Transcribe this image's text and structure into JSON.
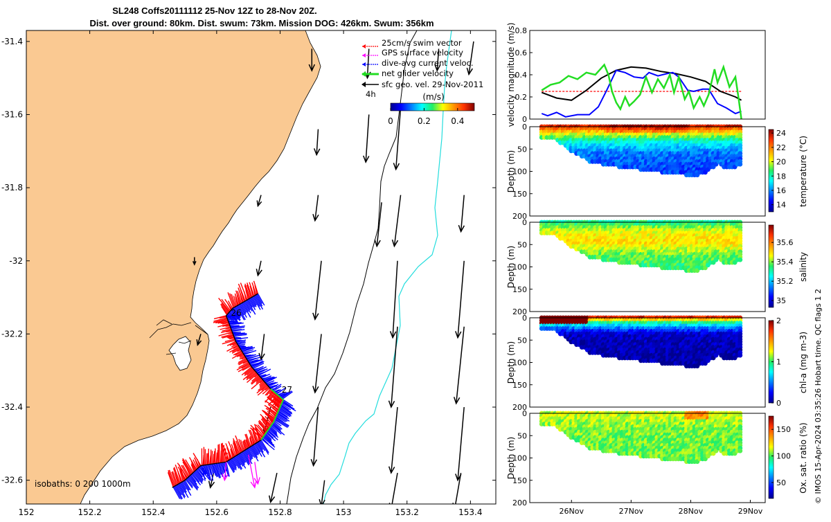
{
  "title": {
    "line1": "SL248 Coffs20111112 25-Nov 12Z to 28-Nov 20Z.",
    "line2": "Dist. over ground: 80km. Dist. swum: 73km. Mission DOG: 426km. Swum: 356km"
  },
  "colors": {
    "land": "#fac992",
    "swim": "#ff0000",
    "gps": "#ff00ff",
    "dive_avg": "#0000ff",
    "net": "#22dd22",
    "sfc": "#000000",
    "isobath_200": "#000000",
    "isobath_1000": "#22dddd"
  },
  "chart_data": [
    {
      "type": "scatter",
      "panel": "map",
      "x_ticks": [
        "152",
        "152.2",
        "152.4",
        "152.6",
        "152.8",
        "153",
        "153.2",
        "153.4"
      ],
      "y_ticks": [
        "-31.4",
        "-31.6",
        "-31.8",
        "-32",
        "-32.2",
        "-32.4",
        "-32.6"
      ],
      "xlim": [
        152.0,
        153.48
      ],
      "ylim": [
        -32.665,
        -31.37
      ],
      "legend": [
        {
          "label": "25cm/s swim vector",
          "color": "#ff0000"
        },
        {
          "label": "GPS surface velocity",
          "color": "#ff00ff"
        },
        {
          "label": "dive-avg current veloc.",
          "color": "#0000ff"
        },
        {
          "label": "net glider velocity",
          "color": "#22dd22"
        },
        {
          "label": "sfc geo. vel. 29-Nov-2011",
          "color": "#000000"
        }
      ],
      "legend_scale_label": "4h",
      "colorbar": {
        "unit": "(m/s)",
        "ticks": [
          "0",
          "0.2",
          "0.4"
        ],
        "range": [
          0,
          0.5
        ]
      },
      "day_labels": [
        {
          "text": "26",
          "lon": 152.645,
          "lat": -32.15
        },
        {
          "text": "27",
          "lon": 152.805,
          "lat": -32.36
        }
      ],
      "isobaths_text": "isobaths: 0   200  1000m",
      "glider_track": [
        [
          152.73,
          -32.09
        ],
        [
          152.65,
          -32.13
        ],
        [
          152.63,
          -32.15
        ],
        [
          152.66,
          -32.22
        ],
        [
          152.71,
          -32.29
        ],
        [
          152.77,
          -32.35
        ],
        [
          152.81,
          -32.38
        ],
        [
          152.78,
          -32.44
        ],
        [
          152.74,
          -32.49
        ],
        [
          152.63,
          -32.55
        ],
        [
          152.55,
          -32.56
        ],
        [
          152.5,
          -32.6
        ],
        [
          152.46,
          -32.62
        ]
      ],
      "gps_vectors": [
        {
          "lon": 152.63,
          "lat": -32.55,
          "dlon": -0.005,
          "dlat": -0.05
        },
        {
          "lon": 152.7,
          "lat": -32.53,
          "dlon": 0.02,
          "dlat": -0.09
        },
        {
          "lon": 152.72,
          "lat": -32.55,
          "dlon": 0.01,
          "dlat": -0.06
        }
      ],
      "sfc_vectors": [
        {
          "lon": 152.9,
          "lat": -31.42,
          "dlon": 0.0,
          "dlat": -0.06
        },
        {
          "lon": 153.08,
          "lat": -31.42,
          "dlon": -0.005,
          "dlat": -0.08
        },
        {
          "lon": 153.3,
          "lat": -31.42,
          "dlon": -0.005,
          "dlat": -0.06
        },
        {
          "lon": 153.41,
          "lat": -31.4,
          "dlon": -0.015,
          "dlat": -0.09
        },
        {
          "lon": 152.92,
          "lat": -31.64,
          "dlon": -0.005,
          "dlat": -0.07
        },
        {
          "lon": 153.08,
          "lat": -31.6,
          "dlon": -0.01,
          "dlat": -0.13
        },
        {
          "lon": 153.18,
          "lat": -31.58,
          "dlon": -0.015,
          "dlat": -0.17
        },
        {
          "lon": 152.74,
          "lat": -31.82,
          "dlon": -0.01,
          "dlat": -0.03
        },
        {
          "lon": 152.92,
          "lat": -31.82,
          "dlon": -0.01,
          "dlat": -0.07
        },
        {
          "lon": 153.12,
          "lat": -31.84,
          "dlon": -0.015,
          "dlat": -0.12
        },
        {
          "lon": 153.18,
          "lat": -31.82,
          "dlon": -0.02,
          "dlat": -0.14
        },
        {
          "lon": 153.38,
          "lat": -31.82,
          "dlon": -0.01,
          "dlat": -0.1
        },
        {
          "lon": 152.53,
          "lat": -31.99,
          "dlon": 0.0,
          "dlat": -0.02
        },
        {
          "lon": 152.74,
          "lat": -32.0,
          "dlon": -0.01,
          "dlat": -0.04
        },
        {
          "lon": 152.93,
          "lat": -32.0,
          "dlon": -0.02,
          "dlat": -0.16
        },
        {
          "lon": 153.17,
          "lat": -32.0,
          "dlon": -0.015,
          "dlat": -0.21
        },
        {
          "lon": 153.38,
          "lat": -32.0,
          "dlon": -0.02,
          "dlat": -0.21
        },
        {
          "lon": 152.55,
          "lat": -32.2,
          "dlon": -0.01,
          "dlat": -0.03
        },
        {
          "lon": 152.75,
          "lat": -32.2,
          "dlon": -0.01,
          "dlat": -0.07
        },
        {
          "lon": 152.93,
          "lat": -32.2,
          "dlon": -0.02,
          "dlat": -0.16
        },
        {
          "lon": 153.17,
          "lat": -32.18,
          "dlon": -0.02,
          "dlat": -0.22
        },
        {
          "lon": 153.38,
          "lat": -32.18,
          "dlon": -0.025,
          "dlat": -0.21
        },
        {
          "lon": 152.77,
          "lat": -32.4,
          "dlon": -0.02,
          "dlat": -0.07
        },
        {
          "lon": 152.92,
          "lat": -32.4,
          "dlon": -0.015,
          "dlat": -0.16
        },
        {
          "lon": 153.17,
          "lat": -32.4,
          "dlon": -0.02,
          "dlat": -0.18
        },
        {
          "lon": 153.38,
          "lat": -32.4,
          "dlon": -0.02,
          "dlat": -0.2
        },
        {
          "lon": 152.59,
          "lat": -32.58,
          "dlon": -0.01,
          "dlat": -0.04
        },
        {
          "lon": 152.79,
          "lat": -32.58,
          "dlon": -0.02,
          "dlat": -0.08
        },
        {
          "lon": 152.94,
          "lat": -32.6,
          "dlon": -0.01,
          "dlat": -0.07
        },
        {
          "lon": 153.17,
          "lat": -32.58,
          "dlon": -0.02,
          "dlat": -0.1
        },
        {
          "lon": 153.37,
          "lat": -32.58,
          "dlon": -0.02,
          "dlat": -0.1
        }
      ]
    },
    {
      "type": "line",
      "panel": "velocity",
      "ylabel": "velocity magnitude (m/s)",
      "ylim": [
        0,
        0.8
      ],
      "y_ticks": [
        "0",
        "0.2",
        "0.4",
        "0.6",
        "0.8"
      ],
      "xlim": [
        25.3,
        29.25
      ],
      "series": [
        {
          "color": "#ff0000",
          "style": "dashed",
          "x": [
            25.5,
            28.85
          ],
          "y": [
            0.25,
            0.25
          ]
        },
        {
          "color": "#000000",
          "x": [
            25.5,
            25.75,
            26.0,
            26.25,
            26.5,
            26.75,
            27.0,
            27.25,
            27.5,
            27.75,
            28.0,
            28.25,
            28.5,
            28.75,
            28.85
          ],
          "y": [
            0.24,
            0.19,
            0.17,
            0.26,
            0.37,
            0.44,
            0.47,
            0.46,
            0.43,
            0.41,
            0.38,
            0.34,
            0.25,
            0.2,
            0.17
          ]
        },
        {
          "color": "#0000ff",
          "x": [
            25.5,
            25.6,
            25.75,
            25.9,
            26.1,
            26.3,
            26.45,
            26.6,
            26.75,
            26.9,
            27.05,
            27.2,
            27.3,
            27.45,
            27.6,
            27.7,
            27.8,
            27.95,
            28.05,
            28.2,
            28.3,
            28.45,
            28.6,
            28.75,
            28.85
          ],
          "y": [
            0.05,
            0.03,
            0.06,
            0.02,
            0.04,
            0.04,
            0.11,
            0.27,
            0.44,
            0.42,
            0.38,
            0.37,
            0.42,
            0.39,
            0.41,
            0.42,
            0.38,
            0.26,
            0.25,
            0.27,
            0.27,
            0.14,
            0.1,
            0.05,
            0.07
          ]
        },
        {
          "color": "#22dd22",
          "x": [
            25.5,
            25.65,
            25.8,
            25.95,
            26.1,
            26.25,
            26.4,
            26.55,
            26.62,
            26.68,
            26.75,
            26.82,
            26.9,
            26.97,
            27.05,
            27.15,
            27.25,
            27.35,
            27.45,
            27.55,
            27.65,
            27.72,
            27.8,
            27.9,
            27.97,
            28.05,
            28.15,
            28.22,
            28.3,
            28.4,
            28.45,
            28.55,
            28.65,
            28.75,
            28.8,
            28.85
          ],
          "y": [
            0.26,
            0.31,
            0.33,
            0.39,
            0.36,
            0.42,
            0.4,
            0.49,
            0.4,
            0.25,
            0.15,
            0.09,
            0.2,
            0.12,
            0.16,
            0.22,
            0.38,
            0.24,
            0.36,
            0.28,
            0.4,
            0.24,
            0.38,
            0.18,
            0.25,
            0.1,
            0.2,
            0.12,
            0.22,
            0.45,
            0.33,
            0.47,
            0.29,
            0.38,
            0.2,
            0.0
          ]
        }
      ]
    },
    {
      "type": "heatmap",
      "panel": "temperature",
      "ylabel": "Depth (m)",
      "ylim": [
        200,
        0
      ],
      "y_ticks": [
        "0",
        "50",
        "100",
        "150",
        "200"
      ],
      "colorbar_label": "temperature (°C)",
      "clim": [
        13,
        24.5
      ],
      "colorbar_ticks": [
        "14",
        "16",
        "18",
        "20",
        "22",
        "24"
      ],
      "max_depth": [
        [
          25.5,
          25
        ],
        [
          25.75,
          30
        ],
        [
          26.0,
          55
        ],
        [
          26.3,
          78
        ],
        [
          26.6,
          86
        ],
        [
          27.0,
          94
        ],
        [
          27.3,
          98
        ],
        [
          27.6,
          104
        ],
        [
          27.9,
          108
        ],
        [
          28.15,
          108
        ],
        [
          28.3,
          100
        ],
        [
          28.45,
          82
        ],
        [
          28.6,
          95
        ],
        [
          28.85,
          88
        ]
      ],
      "layers": [
        [
          0,
          23.5
        ],
        [
          15,
          20.5
        ],
        [
          35,
          17.5
        ],
        [
          60,
          15.8
        ],
        [
          100,
          15.2
        ]
      ]
    },
    {
      "type": "heatmap",
      "panel": "salinity",
      "ylabel": "Depth (m)",
      "ylim": [
        200,
        0
      ],
      "y_ticks": [
        "0",
        "50",
        "100",
        "150",
        "200"
      ],
      "colorbar_label": "salinity",
      "clim": [
        34.93,
        35.78
      ],
      "colorbar_ticks": [
        "35",
        "35.2",
        "35.4",
        "35.6"
      ],
      "max_depth": [
        [
          25.5,
          25
        ],
        [
          25.75,
          30
        ],
        [
          26.0,
          55
        ],
        [
          26.3,
          78
        ],
        [
          26.6,
          86
        ],
        [
          27.0,
          94
        ],
        [
          27.3,
          98
        ],
        [
          27.6,
          104
        ],
        [
          27.9,
          108
        ],
        [
          28.15,
          108
        ],
        [
          28.3,
          100
        ],
        [
          28.45,
          82
        ],
        [
          28.6,
          95
        ],
        [
          28.85,
          88
        ]
      ],
      "layers": [
        [
          0,
          35.32
        ],
        [
          20,
          35.45
        ],
        [
          45,
          35.5
        ],
        [
          75,
          35.38
        ],
        [
          100,
          35.35
        ]
      ]
    },
    {
      "type": "heatmap",
      "panel": "chlorophyll",
      "ylabel": "Depth (m)",
      "ylim": [
        200,
        0
      ],
      "y_ticks": [
        "0",
        "50",
        "100",
        "150",
        "200"
      ],
      "colorbar_label": "chl-a (mg m-3)",
      "clim": [
        0,
        2
      ],
      "colorbar_ticks": [
        "0",
        "1",
        "2"
      ],
      "max_depth": [
        [
          25.5,
          25
        ],
        [
          25.75,
          30
        ],
        [
          26.0,
          55
        ],
        [
          26.3,
          78
        ],
        [
          26.6,
          86
        ],
        [
          27.0,
          94
        ],
        [
          27.3,
          98
        ],
        [
          27.6,
          104
        ],
        [
          27.9,
          108
        ],
        [
          28.15,
          108
        ],
        [
          28.3,
          100
        ],
        [
          28.45,
          82
        ],
        [
          28.6,
          95
        ],
        [
          28.85,
          88
        ]
      ],
      "layers": [
        [
          0,
          1.8
        ],
        [
          10,
          1.0
        ],
        [
          22,
          0.55
        ],
        [
          38,
          0.12
        ],
        [
          100,
          0.05
        ]
      ]
    },
    {
      "type": "heatmap",
      "panel": "oxygen",
      "ylabel": "Depth (m)",
      "ylim": [
        200,
        0
      ],
      "y_ticks": [
        "0",
        "50",
        "100",
        "150",
        "200"
      ],
      "x_ticks": [
        "26Nov",
        "27Nov",
        "28Nov",
        "29Nov"
      ],
      "colorbar_label": "Ox. sat. ratio (%)",
      "clim": [
        20,
        175
      ],
      "colorbar_ticks": [
        "50",
        "100",
        "150"
      ],
      "max_depth": [
        [
          25.5,
          25
        ],
        [
          25.75,
          30
        ],
        [
          26.0,
          55
        ],
        [
          26.3,
          78
        ],
        [
          26.6,
          86
        ],
        [
          27.0,
          94
        ],
        [
          27.3,
          98
        ],
        [
          27.6,
          104
        ],
        [
          27.9,
          108
        ],
        [
          28.15,
          108
        ],
        [
          28.3,
          100
        ],
        [
          28.45,
          82
        ],
        [
          28.6,
          95
        ],
        [
          28.85,
          88
        ]
      ],
      "layers": [
        [
          0,
          112
        ],
        [
          25,
          108
        ],
        [
          55,
          104
        ],
        [
          100,
          103
        ]
      ]
    }
  ],
  "footer": "© IMOS 15-Apr-2024 03:35:26 Hobart time. QC flags 1  2"
}
